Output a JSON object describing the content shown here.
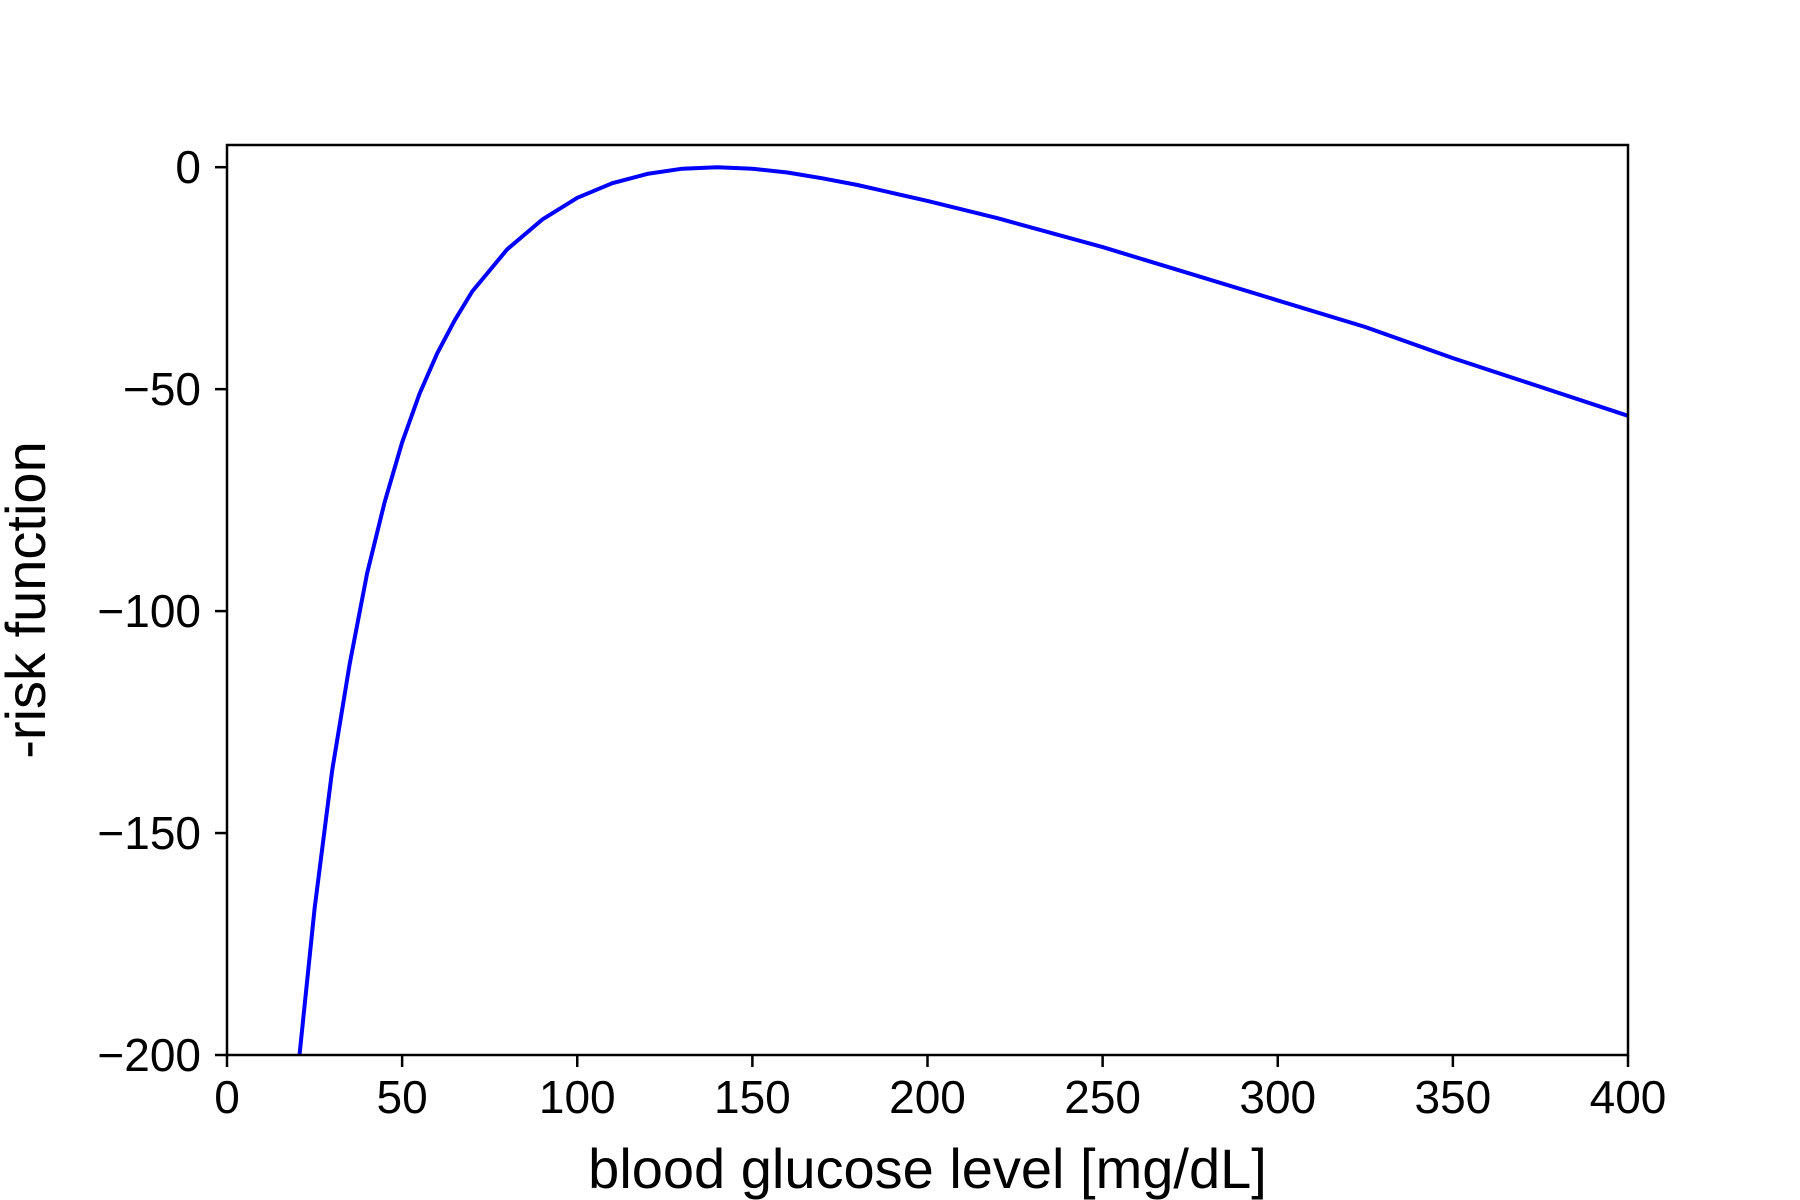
{
  "chart_data": {
    "type": "line",
    "title": "",
    "xlabel": "blood glucose level [mg/dL]",
    "ylabel": "-risk function",
    "xlim": [
      0,
      400
    ],
    "ylim": [
      -200,
      5
    ],
    "xticks": [
      0,
      50,
      100,
      150,
      200,
      250,
      300,
      350,
      400
    ],
    "xtick_labels": [
      "0",
      "50",
      "100",
      "150",
      "200",
      "250",
      "300",
      "350",
      "400"
    ],
    "yticks": [
      0,
      -50,
      -100,
      -150,
      -200
    ],
    "ytick_labels": [
      "0",
      "−50",
      "−100",
      "−150",
      "−200"
    ],
    "grid": false,
    "legend": "none",
    "series": [
      {
        "color": "#0000ff",
        "x": [
          20.7,
          25,
          30,
          35,
          40,
          45,
          50,
          55,
          60,
          65,
          70,
          80,
          90,
          100,
          110,
          120,
          130,
          140,
          150,
          160,
          170,
          180,
          200,
          220,
          250,
          275,
          300,
          325,
          350,
          375,
          400
        ],
        "y": [
          -200,
          -167,
          -136,
          -112,
          -91.5,
          -75.5,
          -62,
          -51,
          -42,
          -34.5,
          -28,
          -18.5,
          -11.8,
          -6.9,
          -3.6,
          -1.5,
          -0.35,
          0,
          -0.35,
          -1.2,
          -2.5,
          -4,
          -7.6,
          -11.5,
          -18,
          -24,
          -30,
          -36,
          -43,
          -49.5,
          -56
        ]
      }
    ]
  }
}
